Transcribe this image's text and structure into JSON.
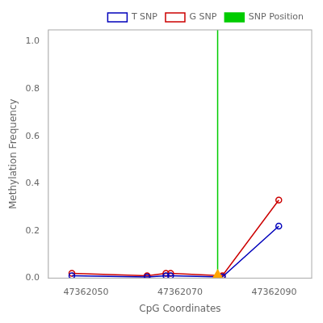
{
  "chart_data": {
    "type": "line",
    "xlabel": "CpG Coordinates",
    "ylabel": "Methylation Frequency",
    "x": [
      47362047,
      47362063,
      47362067,
      47362068,
      47362079,
      47362091
    ],
    "series": [
      {
        "name": "T SNP",
        "color": "#0000bb",
        "marker": "circle",
        "values": [
          0.01,
          0.005,
          0.01,
          0.01,
          0.005,
          0.22
        ]
      },
      {
        "name": "G SNP",
        "color": "#cc0000",
        "marker": "circle",
        "values": [
          0.02,
          0.01,
          0.02,
          0.02,
          0.01,
          0.33
        ]
      },
      {
        "name": "SNP Position",
        "type": "vline",
        "color": "#00cc00",
        "x": 47362078
      },
      {
        "type": "scatter",
        "marker": "triangle",
        "color": "#FFA500",
        "x": [
          47362078
        ],
        "values": [
          0.01
        ]
      }
    ],
    "xlim": [
      47362042,
      47362098
    ],
    "xticks": [
      47362050,
      47362070,
      47362090
    ],
    "ylim": [
      0.0,
      1.05
    ],
    "yticks": [
      {
        "value": 0.0,
        "label": "0.0"
      },
      0.2,
      0.4,
      0.6,
      0.8,
      {
        "value": 1.0,
        "label": "1.0"
      }
    ],
    "grid": false,
    "legend": "upper right"
  }
}
